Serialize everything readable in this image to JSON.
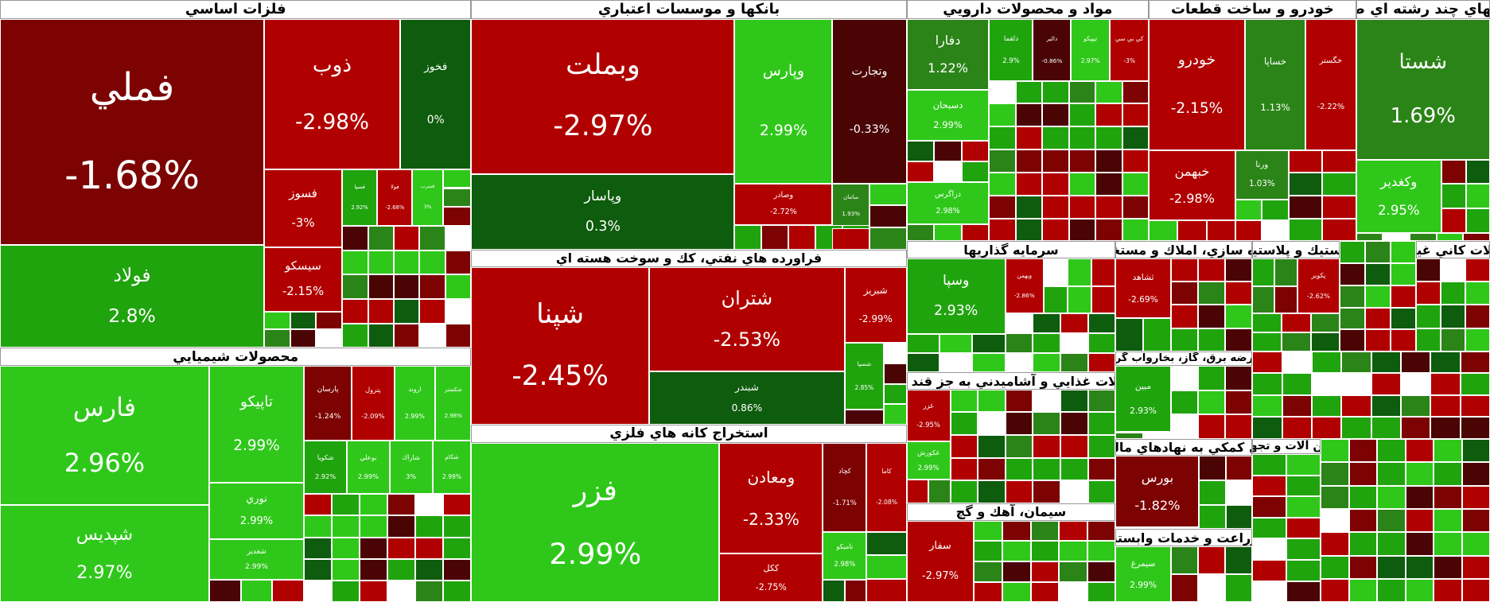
{
  "sectors": [
    {
      "title": "فلزات اساسي",
      "stocks": [
        {
          "name": "فملي",
          "change": "-1.68%"
        },
        {
          "name": "فولاد",
          "change": "2.8%"
        },
        {
          "name": "ذوب",
          "change": "-2.98%"
        },
        {
          "name": "فخوز",
          "change": "0%"
        },
        {
          "name": "فسوز",
          "change": "-3%"
        },
        {
          "name": "سيسكو",
          "change": "-2.15%"
        },
        {
          "name": "فسپا",
          "change": "2.92%"
        },
        {
          "name": "فولا",
          "change": "-2.68%"
        },
        {
          "name": "فسرب",
          "change": "3%"
        }
      ]
    },
    {
      "title": "بانكها و موسسات اعتباري",
      "stocks": [
        {
          "name": "وبملت",
          "change": "-2.97%"
        },
        {
          "name": "وپاسار",
          "change": "0.3%"
        },
        {
          "name": "وپارس",
          "change": "2.99%"
        },
        {
          "name": "وتجارت",
          "change": "-0.33%"
        },
        {
          "name": "وصادر",
          "change": "-2.72%"
        },
        {
          "name": "سامان",
          "change": "1.93%"
        }
      ]
    },
    {
      "title": "فراورده هاي نفتي، كك و سوخت هسته اي",
      "stocks": [
        {
          "name": "شپنا",
          "change": "-2.45%"
        },
        {
          "name": "شتران",
          "change": "-2.53%"
        },
        {
          "name": "شبندر",
          "change": "0.86%"
        },
        {
          "name": "شبريز",
          "change": "-2.99%"
        },
        {
          "name": "شسپا",
          "change": "2.85%"
        }
      ]
    },
    {
      "title": "استخراج كانه هاي فلزي",
      "stocks": [
        {
          "name": "فزر",
          "change": "2.99%"
        },
        {
          "name": "ومعادن",
          "change": "-2.33%"
        },
        {
          "name": "ككل",
          "change": "-2.75%"
        },
        {
          "name": "كچاد",
          "change": "-1.71%"
        },
        {
          "name": "كاما",
          "change": "-2.08%"
        },
        {
          "name": "تاميكو",
          "change": "2.98%"
        }
      ]
    },
    {
      "title": "محصولات شيميايي",
      "stocks": [
        {
          "name": "فارس",
          "change": "2.96%"
        },
        {
          "name": "شپديس",
          "change": "2.97%"
        },
        {
          "name": "تاپيكو",
          "change": "2.99%"
        },
        {
          "name": "نوري",
          "change": "2.99%"
        },
        {
          "name": "شغدير",
          "change": "2.99%"
        },
        {
          "name": "پارسان",
          "change": "-1.24%"
        },
        {
          "name": "پترول",
          "change": "-2.09%"
        },
        {
          "name": "اروند",
          "change": "2.99%"
        },
        {
          "name": "شكستر",
          "change": "2.98%"
        },
        {
          "name": "شكويا",
          "change": "2.92%"
        },
        {
          "name": "بوعلي",
          "change": "2.99%"
        },
        {
          "name": "شاراك",
          "change": "3%"
        },
        {
          "name": "شكام",
          "change": "2.99%"
        }
      ]
    },
    {
      "title": "مواد و محصولات دارويي",
      "stocks": [
        {
          "name": "دفارا",
          "change": "1.22%"
        },
        {
          "name": "دسبحان",
          "change": "2.99%"
        },
        {
          "name": "دزاگرس",
          "change": "2.98%"
        },
        {
          "name": "دلقما",
          "change": "2.9%"
        },
        {
          "name": "دالبر",
          "change": "-0.86%"
        },
        {
          "name": "تيپيكو",
          "change": "2.97%"
        },
        {
          "name": "كي بي سي",
          "change": "-3%"
        }
      ]
    },
    {
      "title": "خودرو و ساخت قطعات",
      "stocks": [
        {
          "name": "خودرو",
          "change": "-2.15%"
        },
        {
          "name": "خساپا",
          "change": "1.13%"
        },
        {
          "name": "خگستر",
          "change": "-2.22%"
        },
        {
          "name": "خبهمن",
          "change": "-2.98%"
        },
        {
          "name": "ورنا",
          "change": "1.03%"
        }
      ]
    },
    {
      "title": "شركتهاي چند رشته اي صنعتي",
      "stocks": [
        {
          "name": "شستا",
          "change": "1.69%"
        },
        {
          "name": "وكغدير",
          "change": "2.95%"
        }
      ]
    },
    {
      "title": "سرمايه گذاريها",
      "stocks": [
        {
          "name": "وسپا",
          "change": "2.93%"
        },
        {
          "name": "وبهمن",
          "change": "-2.86%"
        }
      ]
    },
    {
      "title": "محصولات غذايي و آشاميدني به جز قند و شكر",
      "stocks": [
        {
          "name": "غزر",
          "change": "-2.95%"
        },
        {
          "name": "غكورش",
          "change": "2.99%"
        }
      ]
    },
    {
      "title": "سيمان، آهك و گچ",
      "stocks": [
        {
          "name": "سفار",
          "change": "-2.97%"
        }
      ]
    },
    {
      "title": "انبوه سازي، املاك و مستغلات",
      "stocks": [
        {
          "name": "ثشاهد",
          "change": "-2.69%"
        }
      ]
    },
    {
      "title": "عرضه برق، گاز، بخاروآب گرم",
      "stocks": [
        {
          "name": "مبين",
          "change": "2.93%"
        }
      ]
    },
    {
      "title": "فعاليتهاي كمكي به نهادهاي مالي واسط",
      "stocks": [
        {
          "name": "بورس",
          "change": "-1.82%"
        }
      ]
    },
    {
      "title": "زراعت و خدمات وابسته",
      "stocks": [
        {
          "name": "سيمرغ",
          "change": "2.99%"
        }
      ]
    },
    {
      "title": "لاستيك و پلاستيك",
      "stocks": [
        {
          "name": "پكوير",
          "change": "-2.62%"
        }
      ]
    },
    {
      "title": "ماشين آلات و تجهيزات",
      "stocks": []
    },
    {
      "title": "محصولات كاني غيرفلزي",
      "stocks": []
    }
  ]
}
